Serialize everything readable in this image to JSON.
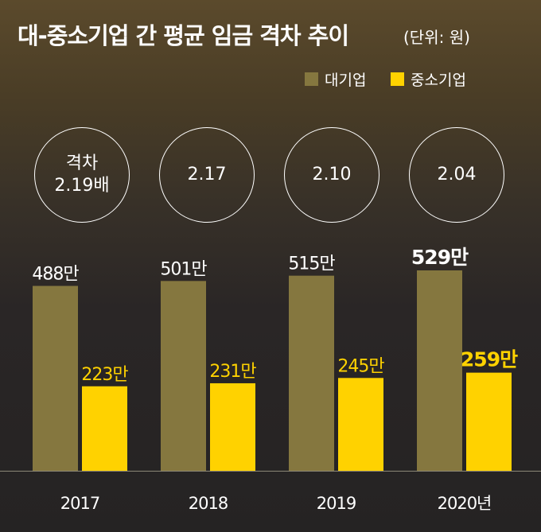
{
  "title": "대-중소기업 간 평균 임금 격차 추이",
  "unit": "(단위: 원)",
  "legend": [
    {
      "label": "대기업",
      "color": "#85773f"
    },
    {
      "label": "중소기업",
      "color": "#ffd200"
    }
  ],
  "gap_labels": [
    {
      "prefix": "격차",
      "value": "2.19배"
    },
    {
      "prefix": "",
      "value": "2.17"
    },
    {
      "prefix": "",
      "value": "2.10"
    },
    {
      "prefix": "",
      "value": "2.04"
    }
  ],
  "chart_data": {
    "type": "bar",
    "categories": [
      "2017",
      "2018",
      "2019",
      "2020년"
    ],
    "series": [
      {
        "name": "대기업",
        "values": [
          488,
          501,
          515,
          529
        ],
        "labels": [
          "488만",
          "501만",
          "515만",
          "529만"
        ],
        "color": "#85773f",
        "label_color": "#ffffff"
      },
      {
        "name": "중소기업",
        "values": [
          223,
          231,
          245,
          259
        ],
        "labels": [
          "223만",
          "231만",
          "245만",
          "259만"
        ],
        "color": "#ffd200",
        "label_color": "#ffd200"
      }
    ],
    "ylim": [
      0,
      529
    ],
    "grid": false,
    "legend_position": "top-right"
  }
}
